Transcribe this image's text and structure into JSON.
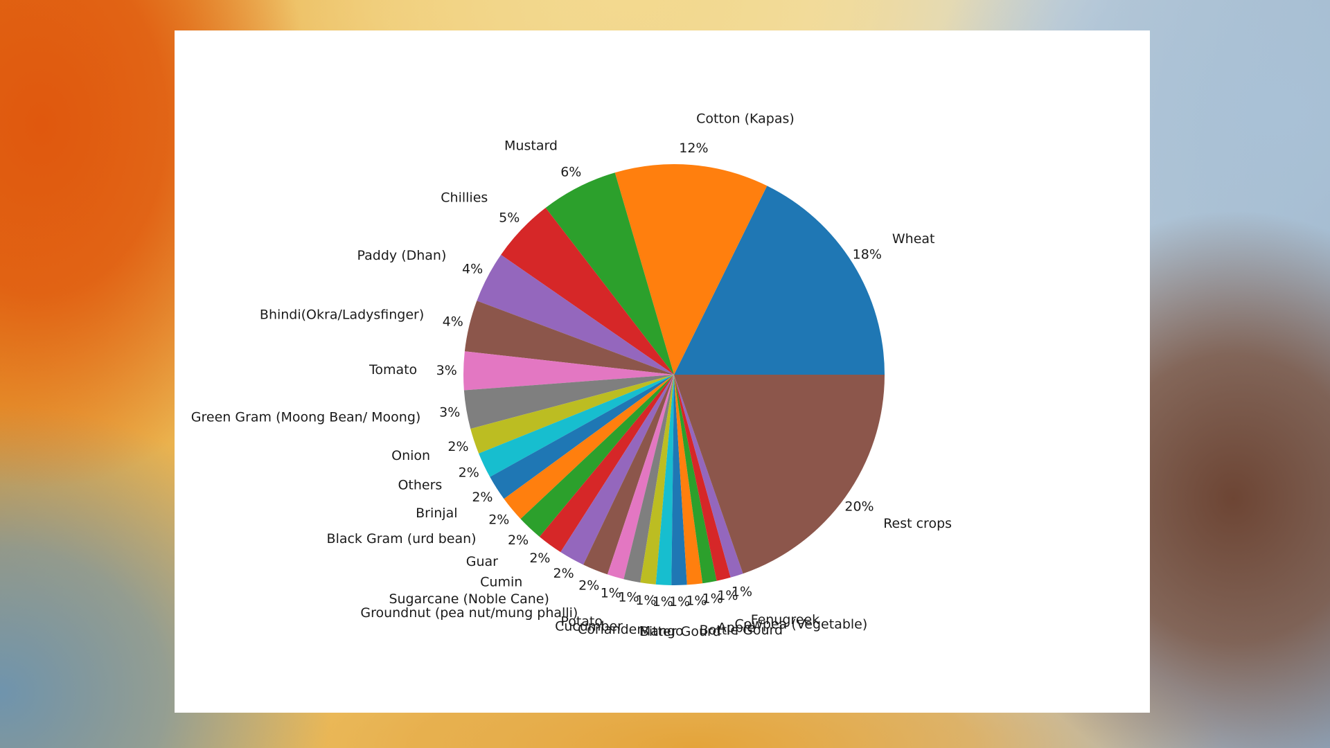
{
  "chart_data": {
    "type": "pie",
    "title": "",
    "start_angle_deg": 0,
    "direction": "counterclockwise",
    "categories": [
      "Wheat",
      "Cotton (Kapas)",
      "Mustard",
      "Chillies",
      "Paddy (Dhan)",
      "Bhindi(Okra/Ladysfinger)",
      "Tomato",
      "Green Gram (Moong Bean/ Moong)",
      "Onion",
      "Others",
      "Brinjal",
      "Black Gram (urd bean)",
      "Guar",
      "Cumin",
      "Sugarcane (Noble Cane)",
      "Groundnut (pea nut/mung phalli)",
      "Potato",
      "Cucumber",
      "Coriander",
      "Mango",
      "Bitter Gourd",
      "Bottle Gourd",
      "Apple",
      "Cowpea (Vegetable)",
      "Fenugreek",
      "Rest crops"
    ],
    "values": [
      18.0,
      12.0,
      6.0,
      5.0,
      4.0,
      4.0,
      3.0,
      3.0,
      2.0,
      2.0,
      2.0,
      2.0,
      2.0,
      2.0,
      2.0,
      2.0,
      1.3,
      1.3,
      1.2,
      1.2,
      1.2,
      1.2,
      1.1,
      1.1,
      1.0,
      20.0
    ],
    "pct_labels": [
      "18%",
      "12%",
      "6%",
      "5%",
      "4%",
      "4%",
      "3%",
      "3%",
      "2%",
      "2%",
      "2%",
      "2%",
      "2%",
      "2%",
      "2%",
      "2%",
      "1%",
      "1%",
      "1%",
      "1%",
      "1%",
      "1%",
      "1%",
      "1%",
      "1%",
      "20%"
    ],
    "colors": [
      "#1f77b4",
      "#ff7f0e",
      "#2ca02c",
      "#d62728",
      "#9467bd",
      "#8c564b",
      "#e377c2",
      "#7f7f7f",
      "#bcbd22",
      "#17becf",
      "#1f77b4",
      "#ff7f0e",
      "#2ca02c",
      "#d62728",
      "#9467bd",
      "#8c564b",
      "#e377c2",
      "#7f7f7f",
      "#bcbd22",
      "#17becf",
      "#1f77b4",
      "#ff7f0e",
      "#2ca02c",
      "#d62728",
      "#9467bd",
      "#8c564b"
    ],
    "legend": false
  }
}
